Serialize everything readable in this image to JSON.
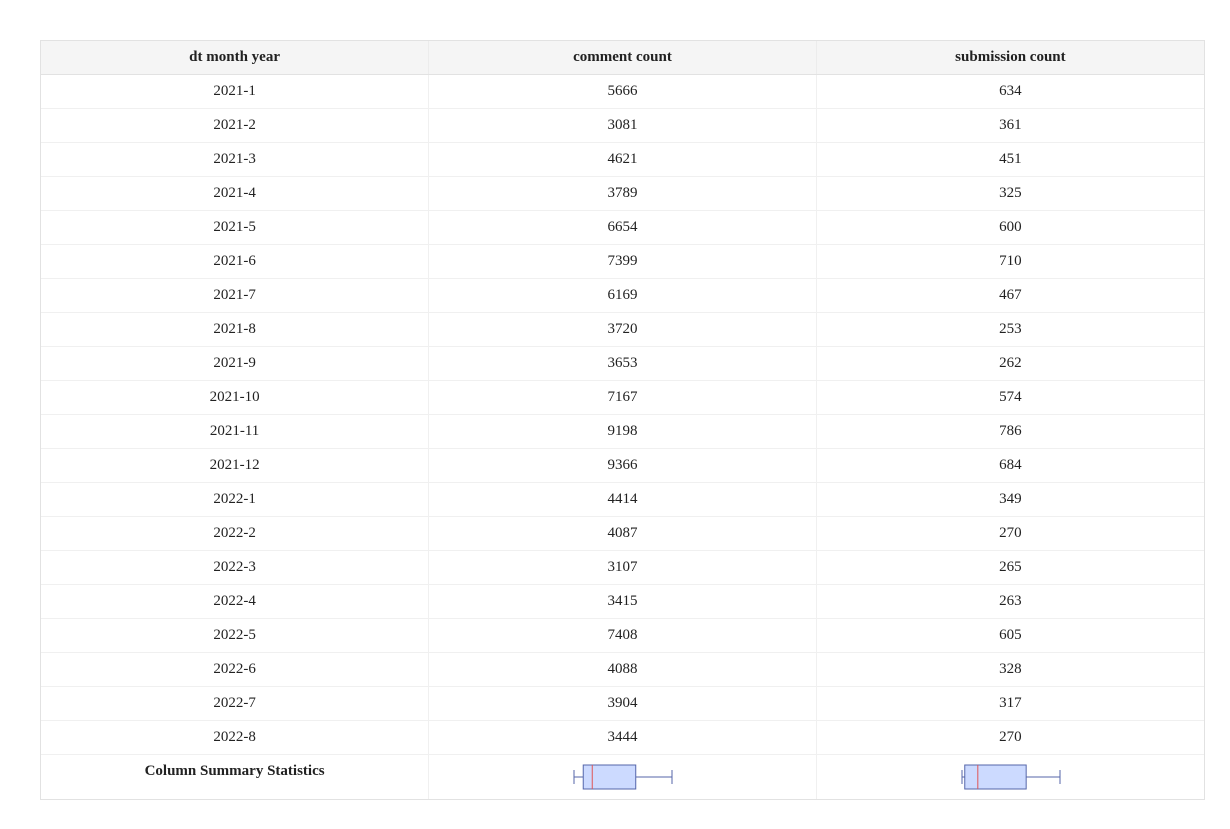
{
  "chart_data": {
    "type": "table",
    "columns": [
      "dt month year",
      "comment count",
      "submission count"
    ],
    "rows": [
      [
        "2021-1",
        "5666",
        "634"
      ],
      [
        "2021-2",
        "3081",
        "361"
      ],
      [
        "2021-3",
        "4621",
        "451"
      ],
      [
        "2021-4",
        "3789",
        "325"
      ],
      [
        "2021-5",
        "6654",
        "600"
      ],
      [
        "2021-6",
        "7399",
        "710"
      ],
      [
        "2021-7",
        "6169",
        "467"
      ],
      [
        "2021-8",
        "3720",
        "253"
      ],
      [
        "2021-9",
        "3653",
        "262"
      ],
      [
        "2021-10",
        "7167",
        "574"
      ],
      [
        "2021-11",
        "9198",
        "786"
      ],
      [
        "2021-12",
        "9366",
        "684"
      ],
      [
        "2022-1",
        "4414",
        "349"
      ],
      [
        "2022-2",
        "4087",
        "270"
      ],
      [
        "2022-3",
        "3107",
        "265"
      ],
      [
        "2022-4",
        "3415",
        "263"
      ],
      [
        "2022-5",
        "7408",
        "605"
      ],
      [
        "2022-6",
        "4088",
        "328"
      ],
      [
        "2022-7",
        "3904",
        "317"
      ],
      [
        "2022-8",
        "3444",
        "270"
      ]
    ],
    "summary_label": "Column Summary Statistics",
    "summary_boxplots": [
      {
        "column": "comment count",
        "min": 3081,
        "q1": 3673,
        "median": 4251,
        "q3": 7041,
        "max": 9366
      },
      {
        "column": "submission count",
        "min": 253,
        "q1": 268,
        "median": 339,
        "q3": 602,
        "max": 786
      }
    ],
    "colors": {
      "box_fill": "#ccdaff",
      "box_stroke": "#5566aa",
      "median_line": "#e05555",
      "header_bg": "#f5f5f5"
    }
  }
}
